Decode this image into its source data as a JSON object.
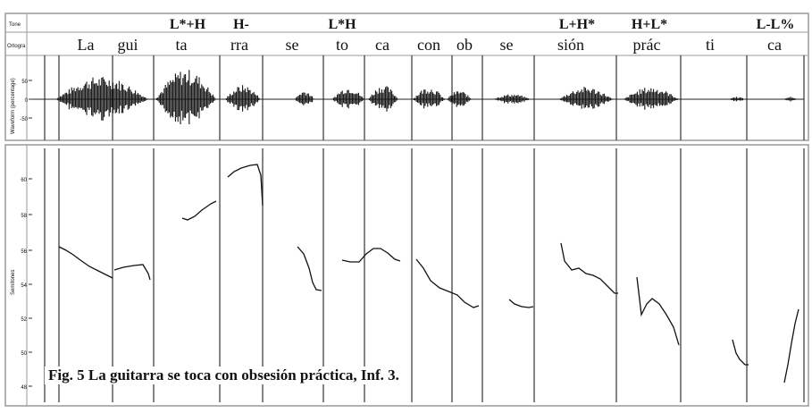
{
  "tiers": {
    "tone_label": "Tone",
    "ortho_label": "Ortogra",
    "wave_label": "Waveform (percentage)",
    "pitch_label": "Semitones"
  },
  "tones": [
    "L*+H",
    "H-",
    "L*H",
    "L+H*",
    "H+L*",
    "L-L%"
  ],
  "syllables": [
    "La",
    "gui",
    "ta",
    "rra",
    "se",
    "to",
    "ca",
    "con",
    "ob",
    "se",
    "sión",
    "prác",
    "ti",
    "ca"
  ],
  "wave_ticks": [
    "50",
    "0",
    "-50"
  ],
  "pitch_ticks": [
    "60",
    "58",
    "56",
    "54",
    "52",
    "50",
    "48"
  ],
  "caption": "Fig. 5 La guitarra se toca con obsesión práctica, Inf. 3.",
  "colors": {
    "ink": "#111111",
    "frame": "#9a9a9a",
    "grid": "#333333"
  }
}
